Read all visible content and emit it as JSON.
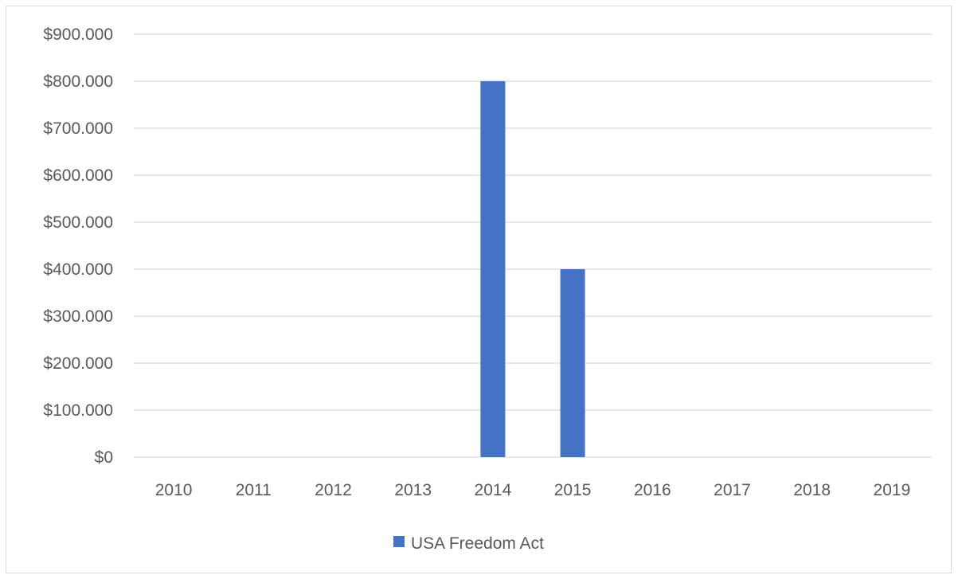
{
  "chart_data": {
    "type": "bar",
    "categories": [
      "2010",
      "2011",
      "2012",
      "2013",
      "2014",
      "2015",
      "2016",
      "2017",
      "2018",
      "2019"
    ],
    "series": [
      {
        "name": "USA Freedom Act",
        "values": [
          0,
          0,
          0,
          0,
          800000,
          400000,
          0,
          0,
          0,
          0
        ],
        "color": "#4472c4"
      }
    ],
    "ylim": [
      0,
      900000
    ],
    "y_tick_labels": [
      "$0",
      "$100.000",
      "$200.000",
      "$300.000",
      "$400.000",
      "$500.000",
      "$600.000",
      "$700.000",
      "$800.000",
      "$900.000"
    ],
    "gridlines": true,
    "legend_position": "bottom",
    "gridline_color": "#d9d9d9",
    "text_color": "#595959"
  }
}
